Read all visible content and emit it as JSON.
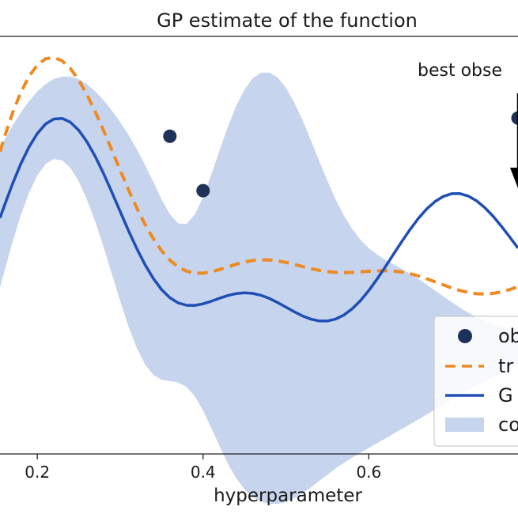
{
  "chart_data": {
    "type": "line",
    "title": "GP estimate of the function",
    "xlabel": "hyperparameter",
    "ylabel": "",
    "xlim": [
      0.155,
      0.78
    ],
    "ylim": [
      -1.25,
      1.05
    ],
    "xticks": [
      {
        "value": 0.2,
        "label": "0.2"
      },
      {
        "value": 0.4,
        "label": "0.4"
      },
      {
        "value": 0.6,
        "label": "0.6"
      }
    ],
    "x": [
      0.155,
      0.16,
      0.17,
      0.18,
      0.19,
      0.2,
      0.21,
      0.22,
      0.23,
      0.24,
      0.25,
      0.26,
      0.27,
      0.28,
      0.29,
      0.3,
      0.31,
      0.32,
      0.33,
      0.34,
      0.35,
      0.36,
      0.37,
      0.38,
      0.39,
      0.4,
      0.41,
      0.42,
      0.43,
      0.44,
      0.45,
      0.46,
      0.47,
      0.48,
      0.49,
      0.5,
      0.51,
      0.52,
      0.53,
      0.54,
      0.55,
      0.56,
      0.57,
      0.58,
      0.59,
      0.6,
      0.61,
      0.62,
      0.63,
      0.64,
      0.65,
      0.66,
      0.67,
      0.68,
      0.69,
      0.7,
      0.71,
      0.72,
      0.73,
      0.74,
      0.75,
      0.76,
      0.77,
      0.78
    ],
    "series": [
      {
        "name": "tr",
        "style": "dashed",
        "color": "#ee8a22",
        "values": [
          0.4155,
          0.4898,
          0.6264,
          0.7408,
          0.83,
          0.8922,
          0.9267,
          0.9339,
          0.9152,
          0.8727,
          0.8094,
          0.7287,
          0.6346,
          0.5311,
          0.4224,
          0.3127,
          0.2059,
          0.1054,
          0.0143,
          -0.0649,
          -0.131,
          -0.1828,
          -0.2201,
          -0.2433,
          -0.254,
          -0.2543,
          -0.2467,
          -0.2341,
          -0.2193,
          -0.2048,
          -0.1926,
          -0.1842,
          -0.1804,
          -0.1813,
          -0.1865,
          -0.1951,
          -0.2059,
          -0.2177,
          -0.2289,
          -0.2387,
          -0.2456,
          -0.2499,
          -0.2513,
          -0.25,
          -0.2471,
          -0.2436,
          -0.241,
          -0.2403,
          -0.2425,
          -0.2482,
          -0.2574,
          -0.27,
          -0.2852,
          -0.302,
          -0.3193,
          -0.3356,
          -0.3498,
          -0.3606,
          -0.3673,
          -0.3691,
          -0.3658,
          -0.3576,
          -0.3448,
          -0.3281
        ]
      },
      {
        "name": "G",
        "style": "solid",
        "color": "#1f4fb4",
        "values": [
          0.05,
          0.1133,
          0.2363,
          0.3468,
          0.4409,
          0.5152,
          0.5672,
          0.595,
          0.5981,
          0.577,
          0.5331,
          0.469,
          0.3878,
          0.2937,
          0.1911,
          0.0851,
          -0.0195,
          -0.1184,
          -0.2076,
          -0.2839,
          -0.3451,
          -0.3897,
          -0.4179,
          -0.4311,
          -0.4318,
          -0.4231,
          -0.4088,
          -0.3924,
          -0.3775,
          -0.3668,
          -0.3625,
          -0.3656,
          -0.3762,
          -0.3936,
          -0.4161,
          -0.4414,
          -0.4669,
          -0.4898,
          -0.5074,
          -0.5174,
          -0.5177,
          -0.507,
          -0.4845,
          -0.4502,
          -0.4048,
          -0.3497,
          -0.287,
          -0.219,
          -0.1485,
          -0.0785,
          -0.0119,
          0.0485,
          0.1,
          0.1406,
          0.1688,
          0.1834,
          0.184,
          0.1707,
          0.1444,
          0.1064,
          0.0588,
          0.004,
          -0.0552,
          -0.116
        ]
      },
      {
        "name": "co",
        "style": "band",
        "color": "#c6d4ed",
        "lower": [
          -0.334,
          -0.25,
          -0.085,
          0.064,
          0.189,
          0.284,
          0.347,
          0.375,
          0.367,
          0.325,
          0.251,
          0.151,
          0.029,
          -0.111,
          -0.259,
          -0.408,
          -0.547,
          -0.666,
          -0.757,
          -0.815,
          -0.842,
          -0.849,
          -0.856,
          -0.88,
          -0.932,
          -1.011,
          -1.107,
          -1.208,
          -1.304,
          -1.384,
          -1.445,
          -1.487,
          -1.513,
          -1.525,
          -1.525,
          -1.514,
          -1.494,
          -1.467,
          -1.434,
          -1.399,
          -1.364,
          -1.33,
          -1.299,
          -1.27,
          -1.243,
          -1.217,
          -1.191,
          -1.165,
          -1.138,
          -1.112,
          -1.086,
          -1.059,
          -1.032,
          -1.005,
          -0.979,
          -0.953,
          -0.928,
          -0.903,
          -0.879,
          -0.855,
          -0.831,
          -0.807,
          -0.783,
          -0.76
        ],
        "upper": [
          0.434,
          0.477,
          0.557,
          0.63,
          0.693,
          0.746,
          0.787,
          0.815,
          0.829,
          0.829,
          0.815,
          0.787,
          0.747,
          0.698,
          0.641,
          0.578,
          0.508,
          0.429,
          0.341,
          0.248,
          0.151,
          0.07,
          0.02,
          0.017,
          0.069,
          0.165,
          0.289,
          0.424,
          0.553,
          0.667,
          0.757,
          0.819,
          0.85,
          0.851,
          0.823,
          0.767,
          0.686,
          0.589,
          0.479,
          0.365,
          0.254,
          0.151,
          0.062,
          -0.012,
          -0.071,
          -0.117,
          -0.152,
          -0.181,
          -0.206,
          -0.231,
          -0.258,
          -0.287,
          -0.318,
          -0.35,
          -0.383,
          -0.414,
          -0.444,
          -0.472,
          -0.496,
          -0.517,
          -0.534,
          -0.548,
          -0.559,
          -0.568
        ]
      }
    ],
    "observations": {
      "name": "ob",
      "color": "#1d3159",
      "points": [
        {
          "x": 0.36,
          "y": 0.5
        },
        {
          "x": 0.4,
          "y": 0.2
        },
        {
          "x": 0.78,
          "y": 0.6
        }
      ]
    },
    "annotations": [
      {
        "text": "best obse"
      }
    ],
    "legend": {
      "position": "lower-right",
      "entries": [
        {
          "label": "ob",
          "kind": "marker"
        },
        {
          "label": "tr",
          "kind": "dashed"
        },
        {
          "label": "G",
          "kind": "line"
        },
        {
          "label": "co",
          "kind": "patch"
        }
      ]
    }
  }
}
